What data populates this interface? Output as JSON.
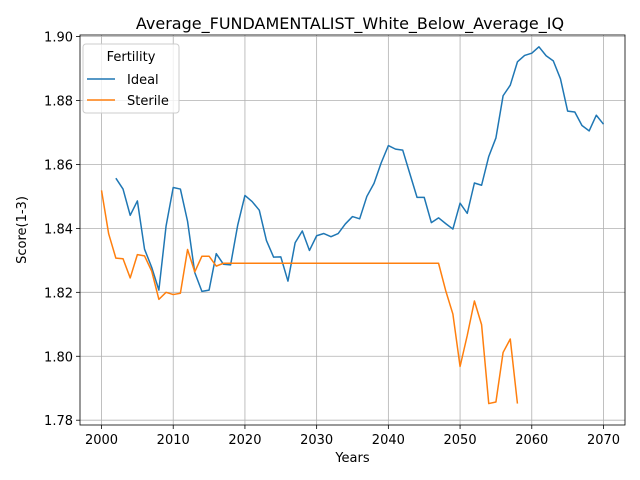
{
  "chart_data": {
    "type": "line",
    "title": "Average_FUNDAMENTALIST_White_Below_Average_IQ",
    "xlabel": "Years",
    "ylabel": "Score(1-3)",
    "xlim": [
      1997,
      2073
    ],
    "ylim": [
      1.7785,
      1.9005
    ],
    "x_ticks": [
      2000,
      2010,
      2020,
      2030,
      2040,
      2050,
      2060,
      2070
    ],
    "y_ticks": [
      1.78,
      1.8,
      1.82,
      1.84,
      1.86,
      1.88,
      1.9
    ],
    "y_tick_labels": [
      "1.78",
      "1.80",
      "1.82",
      "1.84",
      "1.86",
      "1.88",
      "1.90"
    ],
    "grid": true,
    "legend": {
      "title": "Fertility",
      "placement": "upper-left"
    },
    "series": [
      {
        "name": "Ideal",
        "color": "#1f77b4",
        "x": [
          2002,
          2003,
          2004,
          2005,
          2006,
          2007,
          2008,
          2009,
          2010,
          2011,
          2012,
          2013,
          2014,
          2015,
          2016,
          2017,
          2018,
          2019,
          2020,
          2021,
          2022,
          2023,
          2024,
          2025,
          2026,
          2027,
          2028,
          2029,
          2030,
          2031,
          2032,
          2033,
          2034,
          2035,
          2036,
          2037,
          2038,
          2039,
          2040,
          2041,
          2042,
          2043,
          2044,
          2045,
          2046,
          2047,
          2048,
          2049,
          2050,
          2051,
          2052,
          2053,
          2054,
          2055,
          2056,
          2057,
          2058,
          2059,
          2060,
          2061,
          2062,
          2063,
          2064,
          2065,
          2066,
          2067,
          2068,
          2069,
          2070
        ],
        "y": [
          1.8557,
          1.8523,
          1.8441,
          1.8486,
          1.8335,
          1.8278,
          1.8207,
          1.8407,
          1.8528,
          1.8523,
          1.8422,
          1.8262,
          1.8203,
          1.8207,
          1.8321,
          1.8288,
          1.8286,
          1.8411,
          1.8503,
          1.8484,
          1.8457,
          1.8362,
          1.831,
          1.8311,
          1.8235,
          1.8355,
          1.8392,
          1.8331,
          1.8377,
          1.8384,
          1.8374,
          1.8384,
          1.8414,
          1.8437,
          1.843,
          1.85,
          1.8541,
          1.8605,
          1.8659,
          1.8648,
          1.8645,
          1.8571,
          1.8497,
          1.8497,
          1.8418,
          1.8433,
          1.8415,
          1.8398,
          1.8479,
          1.8447,
          1.8542,
          1.8535,
          1.8625,
          1.8683,
          1.8815,
          1.8848,
          1.8921,
          1.8941,
          1.8948,
          1.8968,
          1.894,
          1.8924,
          1.8868,
          1.8767,
          1.8764,
          1.8722,
          1.8705,
          1.8754,
          1.8726
        ]
      },
      {
        "name": "Sterile",
        "color": "#ff7f0e",
        "x": [
          2000,
          2001,
          2002,
          2003,
          2004,
          2005,
          2006,
          2007,
          2008,
          2009,
          2010,
          2011,
          2012,
          2013,
          2014,
          2015,
          2016,
          2017,
          2018,
          2019,
          2020,
          2021,
          2022,
          2023,
          2024,
          2025,
          2026,
          2027,
          2028,
          2029,
          2030,
          2031,
          2032,
          2033,
          2034,
          2035,
          2036,
          2037,
          2038,
          2039,
          2040,
          2041,
          2042,
          2043,
          2044,
          2045,
          2046,
          2047,
          2048,
          2049,
          2050,
          2051,
          2052,
          2053,
          2054,
          2055,
          2056,
          2057,
          2058
        ],
        "y": [
          1.8519,
          1.8383,
          1.8307,
          1.8305,
          1.8245,
          1.8318,
          1.8314,
          1.8266,
          1.8178,
          1.82,
          1.8193,
          1.8197,
          1.8334,
          1.8264,
          1.8313,
          1.8313,
          1.8282,
          1.8291,
          1.8291,
          1.8291,
          1.8291,
          1.8291,
          1.8291,
          1.8291,
          1.8291,
          1.8291,
          1.8291,
          1.8291,
          1.8291,
          1.8291,
          1.8291,
          1.8291,
          1.8291,
          1.8291,
          1.8291,
          1.8291,
          1.8291,
          1.8291,
          1.8291,
          1.8291,
          1.8291,
          1.8291,
          1.8291,
          1.8291,
          1.8291,
          1.8291,
          1.8291,
          1.8291,
          1.8205,
          1.8132,
          1.7968,
          1.8065,
          1.8173,
          1.8099,
          1.7852,
          1.7857,
          1.8012,
          1.8054,
          1.7852
        ]
      }
    ]
  }
}
